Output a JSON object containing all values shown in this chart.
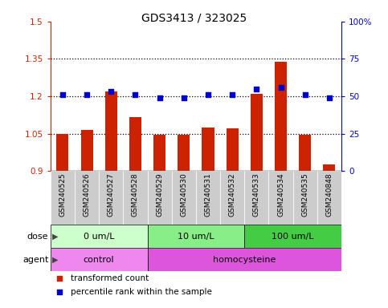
{
  "title": "GDS3413 / 323025",
  "samples": [
    "GSM240525",
    "GSM240526",
    "GSM240527",
    "GSM240528",
    "GSM240529",
    "GSM240530",
    "GSM240531",
    "GSM240532",
    "GSM240533",
    "GSM240534",
    "GSM240535",
    "GSM240848"
  ],
  "bar_values": [
    1.05,
    1.065,
    1.22,
    1.115,
    1.045,
    1.045,
    1.075,
    1.07,
    1.21,
    1.34,
    1.046,
    0.925
  ],
  "scatter_values": [
    51,
    51,
    53,
    51,
    49,
    49,
    51,
    51,
    55,
    56,
    51,
    49
  ],
  "bar_color": "#cc2200",
  "scatter_color": "#0000cc",
  "ylim_left": [
    0.9,
    1.5
  ],
  "ylim_right": [
    0,
    100
  ],
  "yticks_left": [
    0.9,
    1.05,
    1.2,
    1.35,
    1.5
  ],
  "ytick_labels_left": [
    "0.9",
    "1.05",
    "1.2",
    "1.35",
    "1.5"
  ],
  "yticks_right": [
    0,
    25,
    50,
    75,
    100
  ],
  "ytick_labels_right": [
    "0",
    "25",
    "50",
    "75",
    "100%"
  ],
  "dotted_lines": [
    1.05,
    1.2,
    1.35
  ],
  "dose_groups": [
    {
      "label": "0 um/L",
      "start": 0,
      "end": 3,
      "color": "#ccffcc"
    },
    {
      "label": "10 um/L",
      "start": 4,
      "end": 7,
      "color": "#88ee88"
    },
    {
      "label": "100 um/L",
      "start": 8,
      "end": 11,
      "color": "#44cc44"
    }
  ],
  "agent_groups": [
    {
      "label": "control",
      "start": 0,
      "end": 3,
      "color": "#ee88ee"
    },
    {
      "label": "homocysteine",
      "start": 4,
      "end": 11,
      "color": "#dd55dd"
    }
  ],
  "legend_bar_label": "transformed count",
  "legend_scatter_label": "percentile rank within the sample",
  "dose_label": "dose",
  "agent_label": "agent",
  "bar_bottom": 0.9,
  "col_bg_color": "#cccccc",
  "title_fontsize": 10,
  "tick_fontsize": 7.5,
  "sample_fontsize": 6.5
}
